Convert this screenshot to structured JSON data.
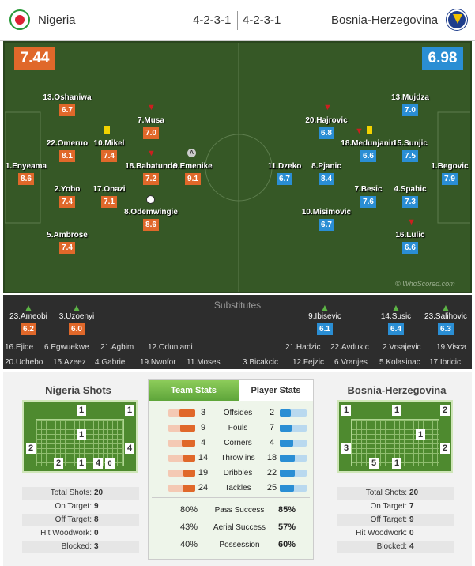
{
  "header": {
    "home_team": "Nigeria",
    "away_team": "Bosnia-Herzegovina",
    "home_formation": "4-2-3-1",
    "away_formation": "4-2-3-1"
  },
  "ratings": {
    "home": "7.44",
    "away": "6.98"
  },
  "watermark": "© WhoScored.com",
  "home_players": [
    {
      "name": "13.Oshaniwa",
      "rating": "6.7"
    },
    {
      "name": "22.Omeruo",
      "rating": "8.1"
    },
    {
      "name": "1.Enyeama",
      "rating": "8.6"
    },
    {
      "name": "2.Yobo",
      "rating": "7.4"
    },
    {
      "name": "5.Ambrose",
      "rating": "7.4"
    },
    {
      "name": "10.Mikel",
      "rating": "7.4"
    },
    {
      "name": "17.Onazi",
      "rating": "7.1"
    },
    {
      "name": "7.Musa",
      "rating": "7.0"
    },
    {
      "name": "18.Babatunde",
      "rating": "7.2"
    },
    {
      "name": "9.Emenike",
      "rating": "9.1"
    },
    {
      "name": "8.Odemwingie",
      "rating": "8.6"
    }
  ],
  "away_players": [
    {
      "name": "13.Mujdza",
      "rating": "7.0"
    },
    {
      "name": "20.Hajrovic",
      "rating": "6.8"
    },
    {
      "name": "18.Medunjanin",
      "rating": "6.6"
    },
    {
      "name": "15.Sunjic",
      "rating": "7.5"
    },
    {
      "name": "1.Begovic",
      "rating": "7.9"
    },
    {
      "name": "11.Dzeko",
      "rating": "6.7"
    },
    {
      "name": "8.Pjanic",
      "rating": "8.4"
    },
    {
      "name": "7.Besic",
      "rating": "7.6"
    },
    {
      "name": "4.Spahic",
      "rating": "7.3"
    },
    {
      "name": "10.Misimovic",
      "rating": "6.7"
    },
    {
      "name": "16.Lulic",
      "rating": "6.6"
    }
  ],
  "substitutes": {
    "title": "Substitutes",
    "home_in": [
      {
        "name": "23.Ameobi",
        "rating": "6.2"
      },
      {
        "name": "3.Uzoenyi",
        "rating": "6.0"
      }
    ],
    "away_in": [
      {
        "name": "9.Ibisevic",
        "rating": "6.1"
      },
      {
        "name": "14.Susic",
        "rating": "6.4"
      },
      {
        "name": "23.Salihovic",
        "rating": "6.3"
      }
    ],
    "home_bench_row1": [
      "16.Ejide",
      "6.Egwuekwe",
      "21.Agbim",
      "12.Odunlami"
    ],
    "home_bench_row2": [
      "20.Uchebo",
      "15.Azeez",
      "4.Gabriel",
      "19.Nwofor",
      "11.Moses"
    ],
    "away_bench_row1": [
      "21.Hadzic",
      "22.Avdukic",
      "2.Vrsajevic",
      "19.Visca"
    ],
    "away_bench_row2": [
      "3.Bicakcic",
      "12.Fejzic",
      "6.Vranjes",
      "5.Kolasinac",
      "17.Ibricic"
    ]
  },
  "home_shots": {
    "title": "Nigeria Shots",
    "zones": [
      "1",
      "1",
      "2",
      "1",
      "4",
      "2",
      "1",
      "4",
      "0"
    ],
    "stats": [
      {
        "label": "Total Shots:",
        "value": "20"
      },
      {
        "label": "On Target:",
        "value": "9"
      },
      {
        "label": "Off Target:",
        "value": "8"
      },
      {
        "label": "Hit Woodwork:",
        "value": "0"
      },
      {
        "label": "Blocked:",
        "value": "3"
      }
    ]
  },
  "away_shots": {
    "title": "Bosnia-Herzegovina",
    "zones": [
      "1",
      "1",
      "2",
      "1",
      "3",
      "2",
      "5",
      "1"
    ],
    "stats": [
      {
        "label": "Total Shots:",
        "value": "20"
      },
      {
        "label": "On Target:",
        "value": "7"
      },
      {
        "label": "Off Target:",
        "value": "9"
      },
      {
        "label": "Hit Woodwork:",
        "value": "0"
      },
      {
        "label": "Blocked:",
        "value": "4"
      }
    ]
  },
  "team_stats": {
    "tab_team": "Team Stats",
    "tab_player": "Player Stats",
    "rows": [
      {
        "label": "Offsides",
        "home": "3",
        "away": "2",
        "home_frac": 0.6,
        "away_frac": 0.4
      },
      {
        "label": "Fouls",
        "home": "9",
        "away": "7",
        "home_frac": 0.56,
        "away_frac": 0.44
      },
      {
        "label": "Corners",
        "home": "4",
        "away": "4",
        "home_frac": 0.5,
        "away_frac": 0.5
      },
      {
        "label": "Throw ins",
        "home": "14",
        "away": "18",
        "home_frac": 0.44,
        "away_frac": 0.56
      },
      {
        "label": "Dribbles",
        "home": "19",
        "away": "22",
        "home_frac": 0.46,
        "away_frac": 0.54
      },
      {
        "label": "Tackles",
        "home": "24",
        "away": "25",
        "home_frac": 0.49,
        "away_frac": 0.51
      }
    ],
    "pct_rows": [
      {
        "label": "Pass Success",
        "home": "80%",
        "away": "85%"
      },
      {
        "label": "Aerial Success",
        "home": "43%",
        "away": "57%"
      },
      {
        "label": "Possession",
        "home": "40%",
        "away": "60%"
      }
    ]
  },
  "colors": {
    "home": "#e0682a",
    "away": "#2a8ed4",
    "pitch": "#365826"
  }
}
